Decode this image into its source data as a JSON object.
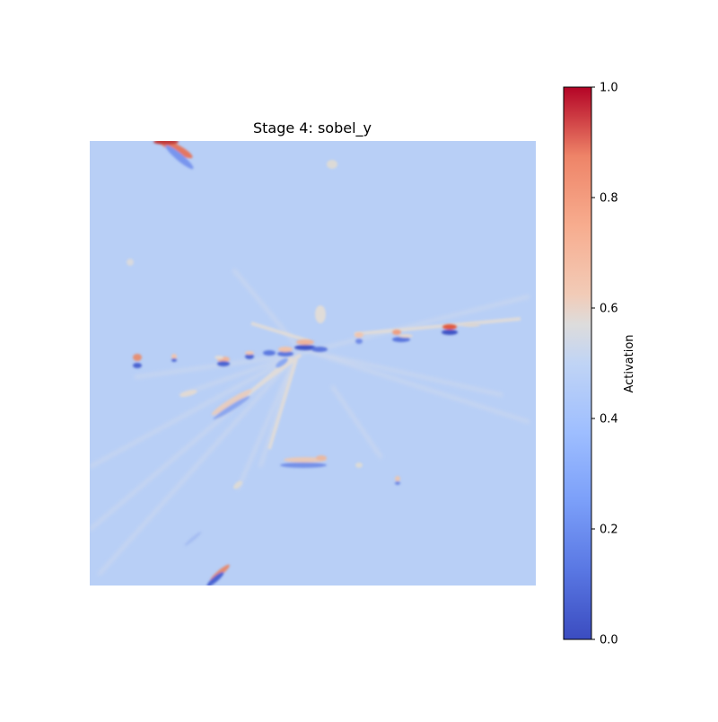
{
  "chart_data": {
    "type": "heatmap",
    "title": "Stage 4: sobel_y",
    "colormap": "coolwarm",
    "colorbar": {
      "label": "Activation",
      "range": [
        0.0,
        1.0
      ],
      "ticks": [
        0.0,
        0.2,
        0.4,
        0.6,
        0.8,
        1.0
      ],
      "tick_labels": [
        "0.0",
        "0.2",
        "0.4",
        "0.6",
        "0.8",
        "1.0"
      ]
    },
    "background_value": 0.37,
    "axes_visible": false,
    "colors": {
      "low": "#3b4cc0",
      "mid": "#dddddd",
      "high": "#b40426",
      "background": "#b8cff6"
    }
  }
}
